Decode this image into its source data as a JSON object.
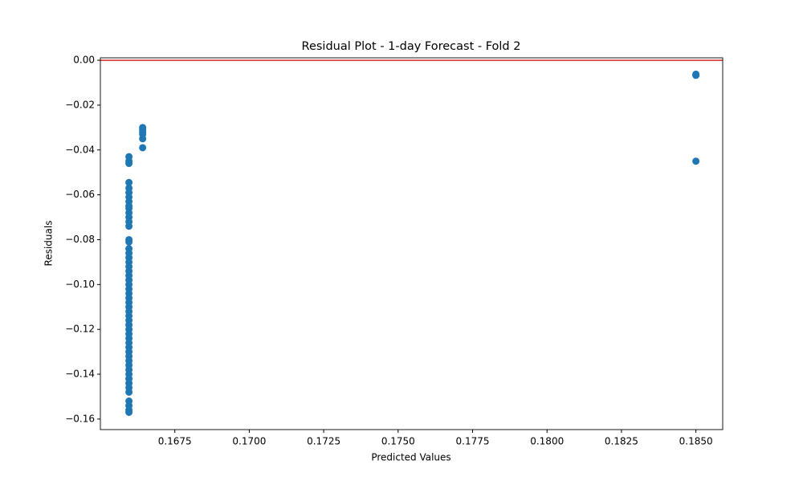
{
  "chart_data": {
    "type": "scatter",
    "title": "Residual Plot - 1-day Forecast - Fold 2",
    "xlabel": "Predicted Values",
    "ylabel": "Residuals",
    "color": "#1f77b4",
    "hline": 0,
    "hline_color": "#d62728",
    "x": [
      0.16596,
      0.16596,
      0.16596,
      0.16596,
      0.16596,
      0.16596,
      0.16596,
      0.16596,
      0.16596,
      0.16596,
      0.16596,
      0.16596,
      0.16596,
      0.16596,
      0.16596,
      0.16596,
      0.16596,
      0.16596,
      0.16596,
      0.16596,
      0.16596,
      0.16596,
      0.16596,
      0.16596,
      0.16596,
      0.16596,
      0.16596,
      0.16596,
      0.16596,
      0.16596,
      0.16596,
      0.16596,
      0.16596,
      0.16596,
      0.16596,
      0.16596,
      0.16596,
      0.16596,
      0.16596,
      0.16596,
      0.16596,
      0.16596,
      0.16596,
      0.16596,
      0.16596,
      0.16596,
      0.16596,
      0.16596,
      0.16596,
      0.16596,
      0.16596,
      0.16596,
      0.16596,
      0.16642,
      0.16642,
      0.16642,
      0.16642,
      0.16642,
      0.16642,
      0.185,
      0.185,
      0.185,
      0.185
    ],
    "values": [
      -0.043,
      -0.045,
      -0.046,
      -0.0545,
      -0.057,
      -0.059,
      -0.061,
      -0.063,
      -0.065,
      -0.066,
      -0.068,
      -0.07,
      -0.072,
      -0.074,
      -0.08,
      -0.081,
      -0.084,
      -0.086,
      -0.088,
      -0.09,
      -0.092,
      -0.094,
      -0.096,
      -0.098,
      -0.1,
      -0.102,
      -0.104,
      -0.106,
      -0.108,
      -0.11,
      -0.112,
      -0.114,
      -0.116,
      -0.118,
      -0.12,
      -0.122,
      -0.124,
      -0.126,
      -0.128,
      -0.13,
      -0.132,
      -0.134,
      -0.136,
      -0.138,
      -0.14,
      -0.142,
      -0.144,
      -0.146,
      -0.148,
      -0.152,
      -0.154,
      -0.156,
      -0.157,
      -0.03,
      -0.031,
      -0.032,
      -0.033,
      -0.035,
      -0.039,
      -0.0062,
      -0.0065,
      -0.0067,
      -0.045
    ],
    "xlim": [
      0.165,
      0.1859
    ],
    "ylim": [
      -0.1647,
      0.0011
    ],
    "xticks": [
      {
        "value": 0.1675,
        "label": "0.1675"
      },
      {
        "value": 0.17,
        "label": "0.1700"
      },
      {
        "value": 0.1725,
        "label": "0.1725"
      },
      {
        "value": 0.175,
        "label": "0.1750"
      },
      {
        "value": 0.1775,
        "label": "0.1775"
      },
      {
        "value": 0.18,
        "label": "0.1800"
      },
      {
        "value": 0.1825,
        "label": "0.1825"
      },
      {
        "value": 0.185,
        "label": "0.1850"
      }
    ],
    "yticks": [
      {
        "value": 0,
        "label": "0.00"
      },
      {
        "value": -0.02,
        "label": "−0.02"
      },
      {
        "value": -0.04,
        "label": "−0.04"
      },
      {
        "value": -0.06,
        "label": "−0.06"
      },
      {
        "value": -0.08,
        "label": "−0.08"
      },
      {
        "value": -0.1,
        "label": "−0.10"
      },
      {
        "value": -0.12,
        "label": "−0.12"
      },
      {
        "value": -0.14,
        "label": "−0.14"
      },
      {
        "value": -0.16,
        "label": "−0.16"
      }
    ]
  }
}
